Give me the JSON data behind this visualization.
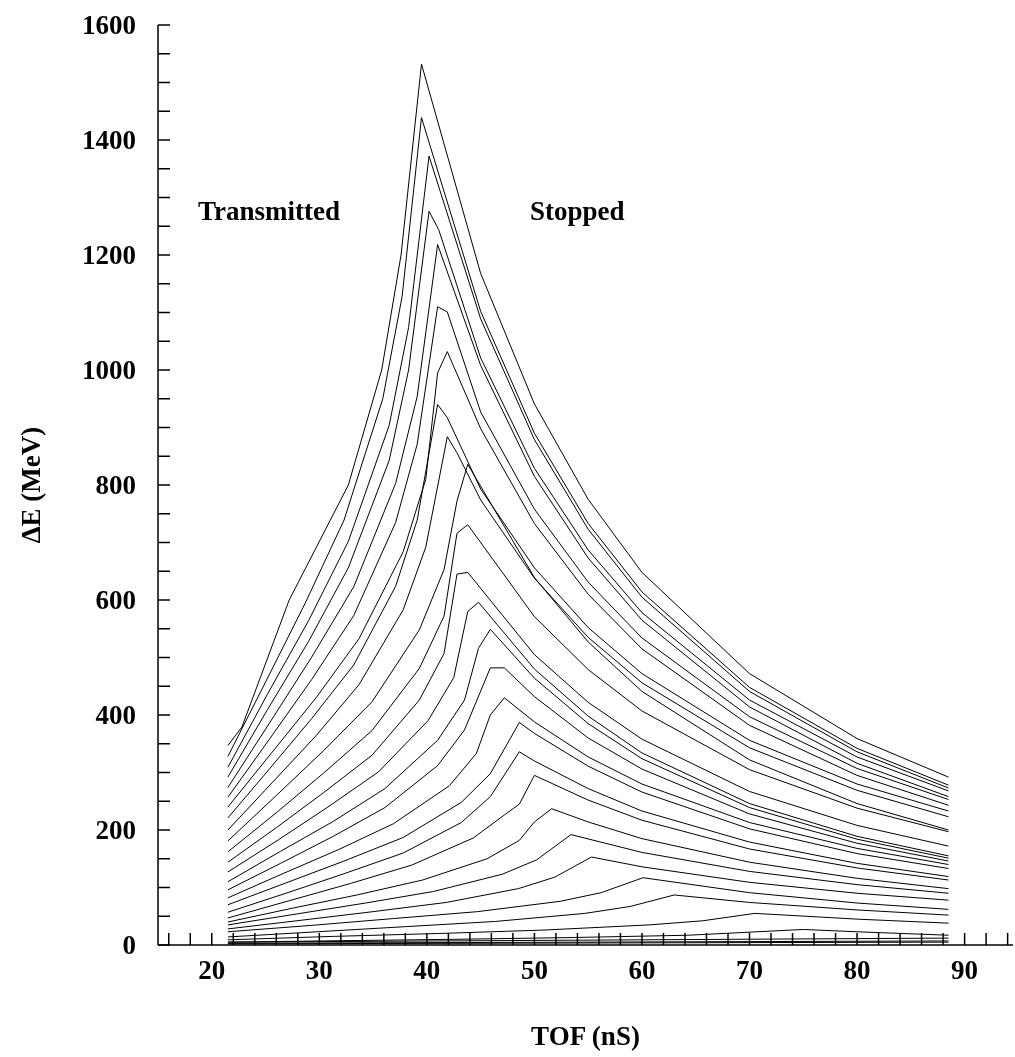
{
  "chart_data": {
    "type": "line",
    "xlabel": "TOF (nS)",
    "ylabel": "ΔE (MeV)",
    "annotations": [
      "Transmitted",
      "Stopped"
    ],
    "marker": "none",
    "xlim": [
      15,
      94.5
    ],
    "ylim": [
      0,
      1600
    ],
    "xticks": [
      {
        "value": 16,
        "label": null
      },
      {
        "value": 18,
        "label": null
      },
      20,
      {
        "value": 22,
        "label": null
      },
      {
        "value": 24,
        "label": null
      },
      {
        "value": 26,
        "label": null
      },
      {
        "value": 28,
        "label": null
      },
      30,
      {
        "value": 32,
        "label": null
      },
      {
        "value": 34,
        "label": null
      },
      {
        "value": 36,
        "label": null
      },
      {
        "value": 38,
        "label": null
      },
      40,
      {
        "value": 42,
        "label": null
      },
      {
        "value": 44,
        "label": null
      },
      {
        "value": 46,
        "label": null
      },
      {
        "value": 48,
        "label": null
      },
      50,
      {
        "value": 52,
        "label": null
      },
      {
        "value": 54,
        "label": null
      },
      {
        "value": 56,
        "label": null
      },
      {
        "value": 58,
        "label": null
      },
      60,
      {
        "value": 62,
        "label": null
      },
      {
        "value": 64,
        "label": null
      },
      {
        "value": 66,
        "label": null
      },
      {
        "value": 68,
        "label": null
      },
      70,
      {
        "value": 72,
        "label": null
      },
      {
        "value": 74,
        "label": null
      },
      {
        "value": 76,
        "label": null
      },
      {
        "value": 78,
        "label": null
      },
      80,
      {
        "value": 82,
        "label": null
      },
      {
        "value": 84,
        "label": null
      },
      {
        "value": 86,
        "label": null
      },
      {
        "value": 88,
        "label": null
      },
      90,
      {
        "value": 92,
        "label": null
      },
      {
        "value": 94,
        "label": null
      }
    ],
    "yticks": [
      0,
      {
        "value": 50,
        "label": null
      },
      {
        "value": 100,
        "label": null
      },
      {
        "value": 150,
        "label": null
      },
      200,
      {
        "value": 250,
        "label": null
      },
      {
        "value": 300,
        "label": null
      },
      {
        "value": 350,
        "label": null
      },
      400,
      {
        "value": 450,
        "label": null
      },
      {
        "value": 500,
        "label": null
      },
      {
        "value": 550,
        "label": null
      },
      600,
      {
        "value": 650,
        "label": null
      },
      {
        "value": 700,
        "label": null
      },
      {
        "value": 750,
        "label": null
      },
      800,
      {
        "value": 850,
        "label": null
      },
      {
        "value": 900,
        "label": null
      },
      {
        "value": 950,
        "label": null
      },
      1000,
      {
        "value": 1050,
        "label": null
      },
      {
        "value": 1100,
        "label": null
      },
      {
        "value": 1150,
        "label": null
      },
      1200,
      {
        "value": 1250,
        "label": null
      },
      {
        "value": 1300,
        "label": null
      },
      {
        "value": 1350,
        "label": null
      },
      1400,
      {
        "value": 1450,
        "label": null
      },
      {
        "value": 1500,
        "label": null
      },
      {
        "value": 1550,
        "label": null
      },
      1600
    ],
    "series": [
      {
        "color": "#000000",
        "x": [
          21.5,
          22.8,
          27.2,
          32.7,
          35.8,
          37.6,
          39.5,
          45,
          50,
          55,
          60,
          70,
          80,
          88.5
        ],
        "values": [
          347,
          379,
          600,
          800,
          1000,
          1200,
          1532,
          1168,
          941,
          775,
          648,
          472,
          359,
          292
        ]
      },
      {
        "color": "#000000",
        "x": [
          21.5,
          25.1,
          28.7,
          32.3,
          35.9,
          37.7,
          39.5,
          45,
          50,
          55,
          60,
          70,
          80,
          88.5
        ],
        "values": [
          328,
          461,
          595,
          739,
          950,
          1128,
          1439,
          1102,
          890,
          733,
          614,
          448,
          342,
          278
        ]
      },
      {
        "color": "#000000",
        "x": [
          21.5,
          25.2,
          29.0,
          32.7,
          36.5,
          38.3,
          40.2,
          45,
          50,
          55,
          60,
          70,
          80,
          88.5
        ],
        "values": [
          309,
          437,
          564,
          702,
          904,
          1074,
          1372,
          1089,
          879,
          723,
          605,
          441,
          336,
          273
        ]
      },
      {
        "color": "#000000",
        "x": [
          21.5,
          25.2,
          29.0,
          32.7,
          36.5,
          38.3,
          40.2,
          41.1,
          45,
          50,
          55,
          60,
          70,
          80,
          88.5
        ],
        "values": [
          292,
          410,
          528,
          656,
          843,
          1000,
          1276,
          1244,
          1021,
          829,
          687,
          578,
          426,
          327,
          268
        ]
      },
      {
        "color": "#000000",
        "x": [
          21.5,
          25.4,
          29.3,
          33.2,
          37.1,
          39.1,
          41.0,
          45,
          50,
          55,
          60,
          70,
          80,
          88.5
        ],
        "values": [
          274,
          387,
          501,
          623,
          803,
          954,
          1218,
          1008,
          815,
          673,
          565,
          414,
          316,
          258
        ]
      },
      {
        "color": "#000000",
        "x": [
          21.5,
          25.4,
          29.3,
          33.2,
          37.1,
          39.1,
          41.0,
          41.9,
          45,
          50,
          55,
          60,
          70,
          80,
          88.5
        ],
        "values": [
          257,
          359,
          462,
          573,
          735,
          871,
          1110,
          1101,
          927,
          758,
          631,
          534,
          397,
          307,
          253
        ]
      },
      {
        "color": "#000000",
        "x": [
          21.5,
          25.6,
          29.7,
          33.7,
          37.8,
          39.9,
          41.0,
          41.9,
          45,
          50,
          55,
          60,
          70,
          80,
          88.5
        ],
        "values": [
          240,
          335,
          430,
          533,
          684,
          810,
          995,
          1032,
          898,
          733,
          610,
          515,
          382,
          295,
          243
        ]
      },
      {
        "color": "#000000",
        "x": [
          21.5,
          25.4,
          29.3,
          33.2,
          37.1,
          39.1,
          41.0,
          41.9,
          45,
          50,
          55,
          60,
          70,
          80,
          88.5
        ],
        "values": [
          221,
          307,
          394,
          487,
          624,
          739,
          940,
          917,
          793,
          656,
          552,
          472,
          356,
          280,
          233
        ]
      },
      {
        "color": "#000000",
        "x": [
          21.5,
          25.6,
          29.7,
          33.7,
          37.8,
          39.9,
          41.9,
          42.8,
          45,
          50,
          55,
          60,
          70,
          80,
          88.5
        ],
        "values": [
          200,
          282,
          364,
          453,
          583,
          692,
          884,
          856,
          774,
          638,
          535,
          456,
          343,
          269,
          223
        ]
      },
      {
        "color": "#000000",
        "x": [
          21.5,
          26.0,
          30.4,
          34.9,
          39.3,
          41.6,
          42.8,
          43.8,
          50,
          55,
          60,
          70,
          80,
          88.5
        ],
        "values": [
          181,
          260,
          338,
          423,
          548,
          653,
          772,
          836,
          639,
          527,
          441,
          322,
          246,
          200
        ]
      },
      {
        "color": "#000000",
        "x": [
          21.5,
          26.0,
          30.4,
          34.9,
          39.3,
          41.6,
          42.8,
          43.8,
          50,
          55,
          60,
          70,
          80,
          88.5
        ],
        "values": [
          162,
          230,
          299,
          373,
          481,
          572,
          716,
          731,
          571,
          479,
          407,
          305,
          238,
          197
        ]
      },
      {
        "color": "#000000",
        "x": [
          21.5,
          26.0,
          30.4,
          34.9,
          39.3,
          41.6,
          42.8,
          43.8,
          50,
          55,
          60,
          70,
          80,
          88.5
        ],
        "values": [
          144,
          204,
          265,
          330,
          426,
          507,
          645,
          648,
          505,
          422,
          358,
          267,
          208,
          172
        ]
      },
      {
        "color": "#000000",
        "x": [
          21.5,
          26.2,
          30.8,
          35.5,
          40.1,
          42.5,
          43.8,
          44.8,
          50,
          55,
          60,
          70,
          80,
          88.5
        ],
        "values": [
          127,
          183,
          240,
          301,
          390,
          465,
          580,
          596,
          480,
          398,
          334,
          246,
          189,
          155
        ]
      },
      {
        "color": "#000000",
        "x": [
          21.5,
          26.4,
          31.3,
          36.1,
          41.0,
          43.5,
          44.8,
          45.9,
          50,
          55,
          60,
          70,
          80,
          88.5
        ],
        "values": [
          110,
          163,
          215,
          272,
          356,
          426,
          516,
          549,
          464,
          385,
          324,
          239,
          184,
          151
        ]
      },
      {
        "color": "#000000",
        "x": [
          21.5,
          26.4,
          31.3,
          36.1,
          41.0,
          43.5,
          45.9,
          47.2,
          50,
          55,
          60,
          70,
          80,
          88.5
        ],
        "values": [
          96,
          142,
          189,
          239,
          312,
          374,
          482,
          482,
          432,
          360,
          306,
          228,
          177,
          146
        ]
      },
      {
        "color": "#000000",
        "x": [
          21.5,
          26.6,
          31.8,
          36.9,
          42.1,
          44.6,
          45.9,
          47.2,
          50,
          55,
          60,
          70,
          80,
          88.5
        ],
        "values": [
          82,
          124,
          166,
          211,
          277,
          333,
          400,
          430,
          388,
          327,
          280,
          213,
          168,
          140
        ]
      },
      {
        "color": "#000000",
        "x": [
          21.5,
          26.9,
          32.3,
          37.8,
          43.2,
          45.9,
          48.6,
          50,
          55,
          60,
          70,
          80,
          88.5
        ],
        "values": [
          70,
          108,
          146,
          187,
          248,
          298,
          387,
          368,
          311,
          266,
          202,
          159,
          133
        ]
      },
      {
        "color": "#000000",
        "x": [
          21.5,
          26.9,
          32.3,
          37.8,
          43.2,
          45.9,
          48.6,
          50,
          55,
          60,
          70,
          80,
          88.5
        ],
        "values": [
          57,
          90,
          124,
          160,
          213,
          258,
          336,
          320,
          272,
          233,
          179,
          142,
          119
        ]
      },
      {
        "color": "#000000",
        "x": [
          21.5,
          27.2,
          32.9,
          38.6,
          44.3,
          47.2,
          48.6,
          50,
          55,
          60,
          70,
          80,
          88.5
        ],
        "values": [
          47,
          77,
          107,
          139,
          186,
          226,
          245,
          295,
          252,
          217,
          167,
          134,
          113
        ]
      },
      {
        "color": "#000000",
        "x": [
          21.5,
          27.5,
          33.5,
          39.6,
          45.6,
          48.6,
          50,
          51.6,
          55,
          60,
          70,
          80,
          88.5
        ],
        "values": [
          40,
          64,
          87,
          113,
          150,
          182,
          214,
          237,
          214,
          185,
          144,
          116,
          98
        ]
      },
      {
        "color": "#000000",
        "x": [
          21.5,
          27.9,
          34.3,
          40.6,
          47.0,
          50.2,
          53.4,
          60,
          70,
          80,
          88.5
        ],
        "values": [
          35,
          54,
          73,
          93,
          123,
          148,
          192,
          161,
          128,
          105,
          90
        ]
      },
      {
        "color": "#000000",
        "x": [
          21.5,
          28.3,
          35.0,
          41.8,
          48.5,
          51.9,
          55.3,
          60,
          70,
          80,
          88.5
        ],
        "values": [
          28,
          43,
          58,
          74,
          98,
          118,
          153,
          136,
          109,
          90,
          78
        ]
      },
      {
        "color": "#000000",
        "x": [
          21.5,
          29.2,
          36.9,
          44.7,
          52.4,
          56.2,
          60.1,
          70,
          80,
          88.5
        ],
        "values": [
          23,
          34,
          46,
          58,
          76,
          91,
          117,
          91,
          73,
          62
        ]
      },
      {
        "color": "#000000",
        "x": [
          21.5,
          29.8,
          38.1,
          46.4,
          54.7,
          58.9,
          63,
          70,
          80,
          88.5
        ],
        "values": [
          14,
          23,
          32,
          41,
          55,
          67,
          87,
          74,
          61,
          52
        ]
      },
      {
        "color": "#000000",
        "x": [
          21.5,
          31.3,
          41.1,
          50.9,
          60.7,
          65.6,
          70.5,
          80,
          88.5
        ],
        "values": [
          9,
          15,
          20,
          26,
          35,
          42,
          55,
          45,
          38
        ]
      },
      {
        "color": "#000000",
        "x": [
          21.5,
          42.9,
          53.6,
          64.3,
          75,
          80,
          88.5
        ],
        "values": [
          5,
          10,
          13,
          17,
          27,
          23,
          17
        ]
      },
      {
        "color": "#000000",
        "x": [
          21.5,
          60,
          88.5
        ],
        "values": [
          5,
          9,
          12
        ]
      },
      {
        "color": "#000000",
        "x": [
          21.5,
          88.5
        ],
        "values": [
          3,
          7
        ]
      },
      {
        "color": "#000000",
        "x": [
          21.5,
          88.5
        ],
        "values": [
          2,
          5
        ]
      }
    ]
  }
}
